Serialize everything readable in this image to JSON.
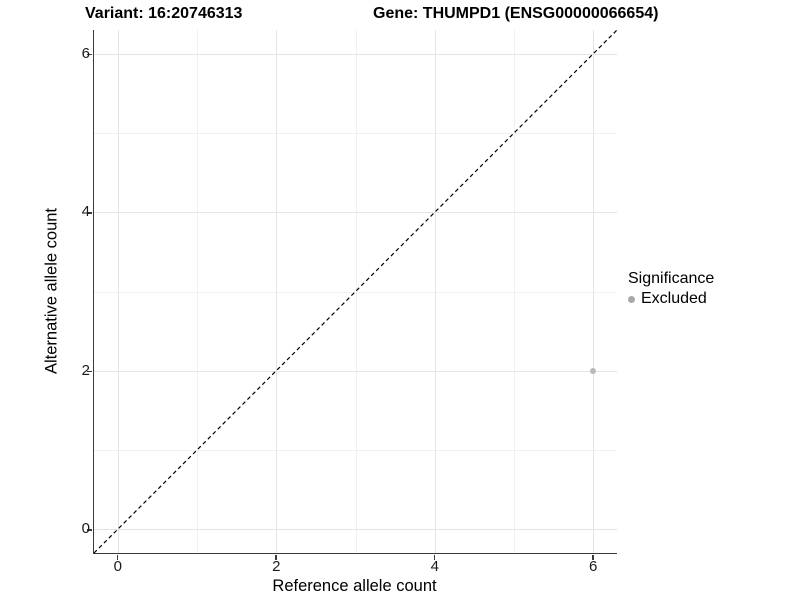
{
  "header": {
    "variant_title": "Variant: 16:20746313",
    "gene_title": "Gene: THUMPD1 (ENSG00000066654)"
  },
  "chart_data": {
    "type": "scatter",
    "title_left": "Variant: 16:20746313",
    "title_right": "Gene: THUMPD1 (ENSG00000066654)",
    "xlabel": "Reference allele count",
    "ylabel": "Alternative allele count",
    "xlim": [
      -0.3,
      6.3
    ],
    "ylim": [
      -0.3,
      6.3
    ],
    "x_major_ticks": [
      0,
      2,
      4,
      6
    ],
    "y_major_ticks": [
      0,
      2,
      4,
      6
    ],
    "x_minor_ticks": [
      1,
      3,
      5
    ],
    "y_minor_ticks": [
      1,
      3,
      5
    ],
    "grid": "on",
    "reference_line": {
      "kind": "identity y=x",
      "style": "dashed",
      "color": "#000000"
    },
    "series": [
      {
        "name": "Excluded",
        "color": "#b9b9b9",
        "points": [
          {
            "x": 6,
            "y": 2
          }
        ]
      }
    ],
    "legend": {
      "title": "Significance",
      "position": "right",
      "items": [
        {
          "label": "Excluded",
          "color": "#a8a8a8"
        }
      ]
    }
  }
}
